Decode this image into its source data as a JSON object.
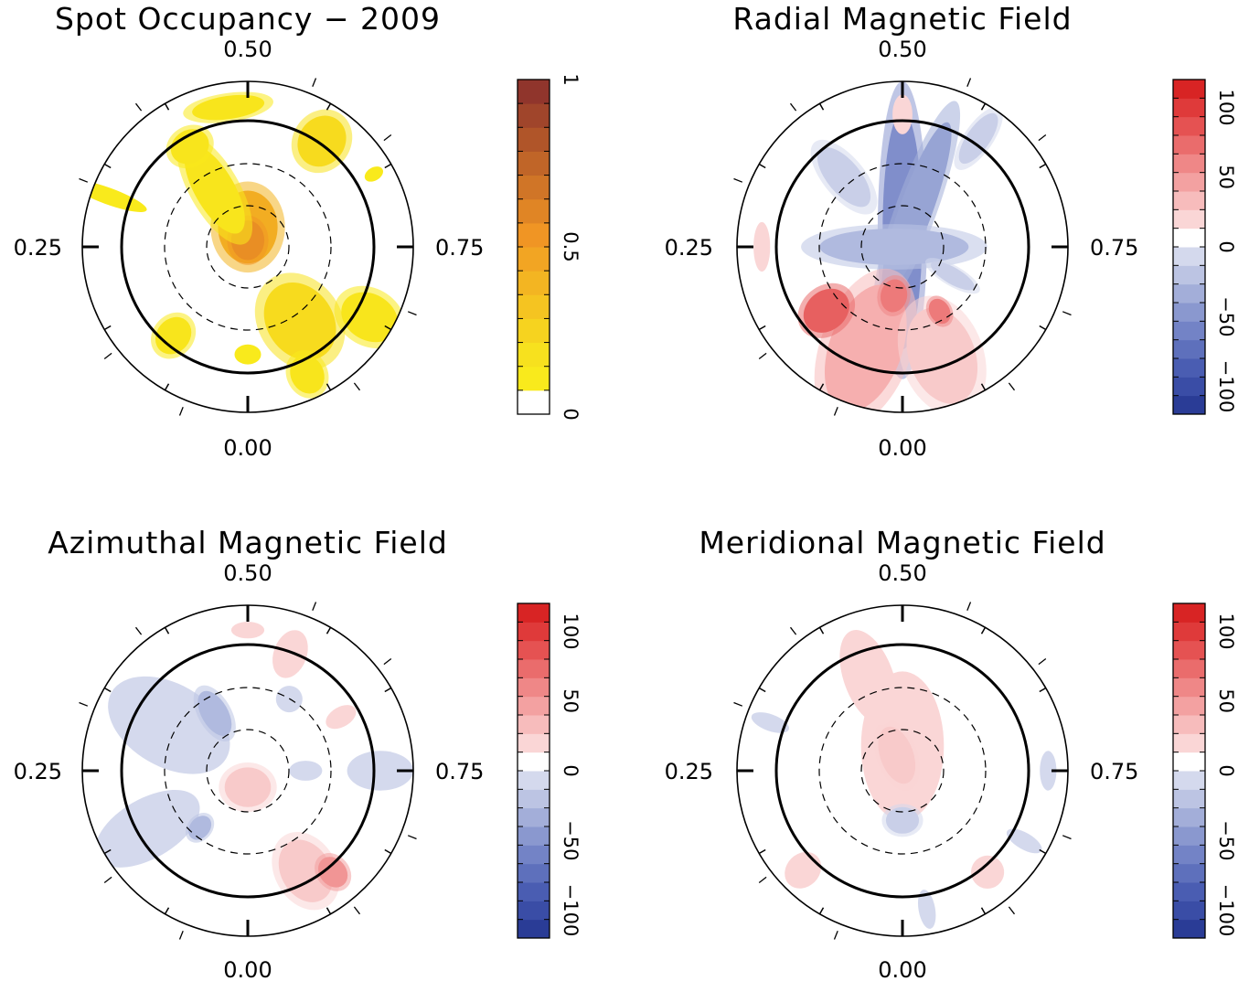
{
  "chart_data": [
    {
      "type": "polar-map",
      "title": "Spot Occupancy − 2009",
      "phase_labels": {
        "top": "0.50",
        "left": "0.25",
        "right": "0.75",
        "bottom": "0.00"
      },
      "colorbar": {
        "min": 0,
        "max": 1,
        "ticks": [
          "0",
          "0.5",
          "1"
        ],
        "colors": [
          "#ffffff",
          "#f9ea1c",
          "#f7e11e",
          "#f6d31f",
          "#f5c421",
          "#f3b522",
          "#f2a523",
          "#f09524",
          "#e08525",
          "#d07527",
          "#c06528",
          "#b05529",
          "#a0452b",
          "#90352c"
        ]
      },
      "blobs": [
        {
          "r": 0.12,
          "a": 180,
          "rx": 0.22,
          "ry": 0.18,
          "level": 6
        },
        {
          "r": 0.04,
          "a": 180,
          "rx": 0.12,
          "ry": 0.1,
          "level": 8
        },
        {
          "r": 0.4,
          "a": 150,
          "rx": 0.3,
          "ry": 0.12,
          "level": 2
        },
        {
          "r": 0.7,
          "a": 150,
          "rx": 0.1,
          "ry": 0.12,
          "level": 2
        },
        {
          "r": 0.85,
          "a": 172,
          "rx": 0.07,
          "ry": 0.22,
          "level": 2
        },
        {
          "r": 0.78,
          "a": 215,
          "rx": 0.16,
          "ry": 0.14,
          "level": 3
        },
        {
          "r": 0.88,
          "a": 240,
          "rx": 0.06,
          "ry": 0.04,
          "level": 1
        },
        {
          "r": 0.9,
          "a": 110,
          "rx": 0.25,
          "ry": 0.05,
          "level": 1
        },
        {
          "r": 0.85,
          "a": 300,
          "rx": 0.18,
          "ry": 0.14,
          "level": 2
        },
        {
          "r": 0.55,
          "a": 325,
          "rx": 0.25,
          "ry": 0.2,
          "level": 3
        },
        {
          "r": 0.7,
          "a": 40,
          "rx": 0.12,
          "ry": 0.1,
          "level": 2
        },
        {
          "r": 0.65,
          "a": 0,
          "rx": 0.06,
          "ry": 0.08,
          "level": 1
        },
        {
          "r": 0.85,
          "a": 335,
          "rx": 0.12,
          "ry": 0.1,
          "level": 2
        }
      ]
    },
    {
      "type": "polar-map",
      "title": "Radial Magnetic Field",
      "phase_labels": {
        "top": "0.50",
        "left": "0.25",
        "right": "0.75",
        "bottom": "0.00"
      },
      "colorbar": {
        "min": -120,
        "max": 120,
        "ticks": [
          "−100",
          "−50",
          "0",
          "50",
          "100"
        ],
        "colors": [
          "#2a3c96",
          "#3a4da6",
          "#4a5db2",
          "#5e70bc",
          "#7383c6",
          "#8a98cf",
          "#a3aed9",
          "#bcc4e3",
          "#d4d9ed",
          "#ffffff",
          "#fad6d6",
          "#f7bcbc",
          "#f3a1a1",
          "#ef8787",
          "#ea6c6c",
          "#e55252",
          "#df3a3a",
          "#d82424"
        ]
      },
      "blobs": [
        {
          "r": 0.1,
          "a": 180,
          "rx": 0.72,
          "ry": 0.12,
          "level": -5
        },
        {
          "r": 0.25,
          "a": 200,
          "rx": 0.55,
          "ry": 0.1,
          "level": -4
        },
        {
          "r": 0.05,
          "a": 90,
          "rx": 0.45,
          "ry": 0.11,
          "level": -3
        },
        {
          "r": 0.55,
          "a": 140,
          "rx": 0.22,
          "ry": 0.1,
          "level": -2
        },
        {
          "r": 0.8,
          "a": 215,
          "rx": 0.18,
          "ry": 0.07,
          "level": -2
        },
        {
          "r": 0.65,
          "a": 20,
          "rx": 0.4,
          "ry": 0.22,
          "level": 3
        },
        {
          "r": 0.7,
          "a": 340,
          "rx": 0.3,
          "ry": 0.2,
          "level": 2
        },
        {
          "r": 0.6,
          "a": 50,
          "rx": 0.15,
          "ry": 0.12,
          "level": 6
        },
        {
          "r": 0.3,
          "a": 10,
          "rx": 0.1,
          "ry": 0.08,
          "level": 5
        },
        {
          "r": 0.45,
          "a": 330,
          "rx": 0.08,
          "ry": 0.06,
          "level": 5
        },
        {
          "r": 0.8,
          "a": 180,
          "rx": 0.12,
          "ry": 0.06,
          "level": 1
        },
        {
          "r": 0.85,
          "a": 90,
          "rx": 0.05,
          "ry": 0.15,
          "level": 1
        },
        {
          "r": 0.35,
          "a": 300,
          "rx": 0.15,
          "ry": 0.05,
          "level": -2
        }
      ]
    },
    {
      "type": "polar-map",
      "title": "Azimuthal Magnetic Field",
      "phase_labels": {
        "top": "0.50",
        "left": "0.25",
        "right": "0.75",
        "bottom": "0.00"
      },
      "colorbar": {
        "min": -120,
        "max": 120,
        "ticks": [
          "−100",
          "−50",
          "0",
          "50",
          "100"
        ],
        "colors": [
          "#2a3c96",
          "#3a4da6",
          "#4a5db2",
          "#5e70bc",
          "#7383c6",
          "#8a98cf",
          "#a3aed9",
          "#bcc4e3",
          "#d4d9ed",
          "#ffffff",
          "#fad6d6",
          "#f7bcbc",
          "#f3a1a1",
          "#ef8787",
          "#ea6c6c",
          "#e55252",
          "#df3a3a",
          "#d82424"
        ]
      },
      "blobs": [
        {
          "r": 0.55,
          "a": 120,
          "rx": 0.4,
          "ry": 0.25,
          "level": -1
        },
        {
          "r": 0.4,
          "a": 150,
          "rx": 0.15,
          "ry": 0.08,
          "level": -3
        },
        {
          "r": 0.7,
          "a": 60,
          "rx": 0.35,
          "ry": 0.18,
          "level": -1
        },
        {
          "r": 0.45,
          "a": 40,
          "rx": 0.08,
          "ry": 0.06,
          "level": -3
        },
        {
          "r": 0.8,
          "a": 270,
          "rx": 0.2,
          "ry": 0.12,
          "level": -1
        },
        {
          "r": 0.7,
          "a": 330,
          "rx": 0.2,
          "ry": 0.15,
          "level": 2
        },
        {
          "r": 0.8,
          "a": 320,
          "rx": 0.1,
          "ry": 0.08,
          "level": 4
        },
        {
          "r": 0.1,
          "a": 0,
          "rx": 0.12,
          "ry": 0.14,
          "level": 2
        },
        {
          "r": 0.75,
          "a": 200,
          "rx": 0.15,
          "ry": 0.1,
          "level": 1
        },
        {
          "r": 0.65,
          "a": 240,
          "rx": 0.1,
          "ry": 0.06,
          "level": 1
        },
        {
          "r": 0.85,
          "a": 180,
          "rx": 0.05,
          "ry": 0.1,
          "level": 1
        },
        {
          "r": 0.35,
          "a": 270,
          "rx": 0.1,
          "ry": 0.06,
          "level": -1
        },
        {
          "r": 0.5,
          "a": 210,
          "rx": 0.08,
          "ry": 0.08,
          "level": -1
        }
      ]
    },
    {
      "type": "polar-map",
      "title": "Meridional Magnetic Field",
      "phase_labels": {
        "top": "0.50",
        "left": "0.25",
        "right": "0.75",
        "bottom": "0.00"
      },
      "colorbar": {
        "min": -120,
        "max": 120,
        "ticks": [
          "−100",
          "−50",
          "0",
          "50",
          "100"
        ],
        "colors": [
          "#2a3c96",
          "#3a4da6",
          "#4a5db2",
          "#5e70bc",
          "#7383c6",
          "#8a98cf",
          "#a3aed9",
          "#bcc4e3",
          "#d4d9ed",
          "#ffffff",
          "#fad6d6",
          "#f7bcbc",
          "#f3a1a1",
          "#ef8787",
          "#ea6c6c",
          "#e55252",
          "#df3a3a",
          "#d82424"
        ]
      },
      "blobs": [
        {
          "r": 0.15,
          "a": 180,
          "rx": 0.45,
          "ry": 0.25,
          "level": 1
        },
        {
          "r": 0.1,
          "a": 160,
          "rx": 0.18,
          "ry": 0.1,
          "level": 2
        },
        {
          "r": 0.6,
          "a": 160,
          "rx": 0.3,
          "ry": 0.15,
          "level": 1
        },
        {
          "r": 0.3,
          "a": 0,
          "rx": 0.08,
          "ry": 0.1,
          "level": -2
        },
        {
          "r": 0.85,
          "a": 45,
          "rx": 0.12,
          "ry": 0.1,
          "level": 1
        },
        {
          "r": 0.8,
          "a": 320,
          "rx": 0.1,
          "ry": 0.1,
          "level": 1
        },
        {
          "r": 0.88,
          "a": 270,
          "rx": 0.05,
          "ry": 0.12,
          "level": -1
        },
        {
          "r": 0.85,
          "a": 110,
          "rx": 0.12,
          "ry": 0.05,
          "level": -1
        },
        {
          "r": 0.85,
          "a": 300,
          "rx": 0.12,
          "ry": 0.05,
          "level": -1
        },
        {
          "r": 0.85,
          "a": 350,
          "rx": 0.12,
          "ry": 0.05,
          "level": -1
        }
      ]
    }
  ]
}
